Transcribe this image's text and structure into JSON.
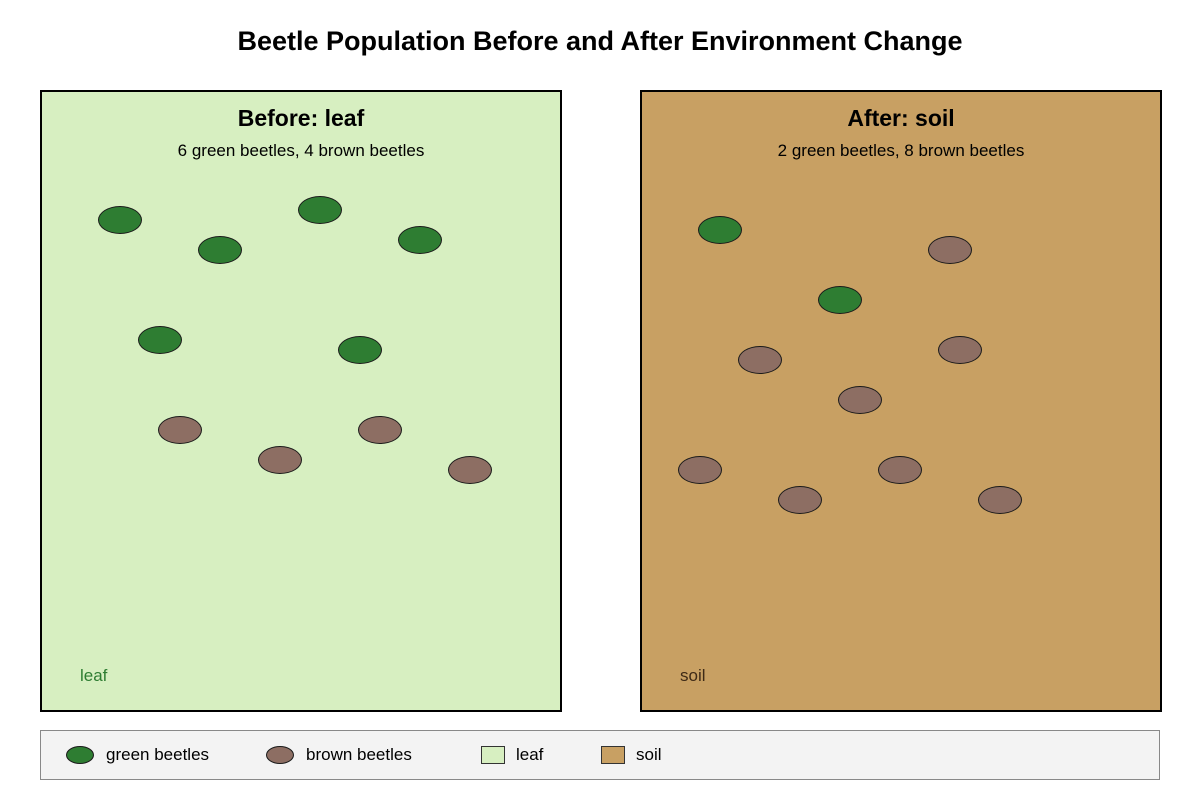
{
  "title": "Beetle Population Before and After Environment Change",
  "colors": {
    "green_beetle": "#2e7d32",
    "brown_beetle": "#8d6e63",
    "leaf_background": "#d7efc1",
    "soil_background": "#c8a063",
    "leaf_label_text": "#2e7d32",
    "soil_label_text": "#3e2a16"
  },
  "panels": {
    "before": {
      "title": "Before: leaf",
      "subtitle": "6 green beetles, 4 brown beetles",
      "environment": "leaf",
      "green_count": 6,
      "brown_count": 4
    },
    "after": {
      "title": "After: soil",
      "subtitle": "2 green beetles, 8 brown beetles",
      "environment": "soil",
      "green_count": 2,
      "brown_count": 8
    }
  },
  "legend": {
    "green_beetles": "green beetles",
    "brown_beetles": "brown beetles",
    "leaf": "leaf",
    "soil": "soil"
  }
}
